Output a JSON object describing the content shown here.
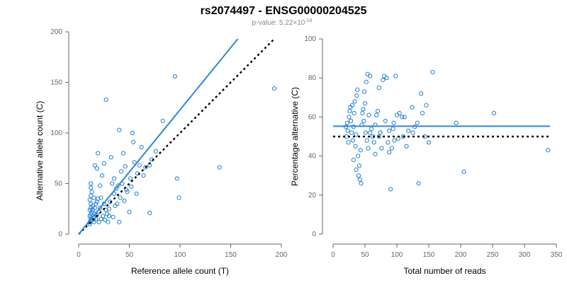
{
  "figure": {
    "title": "rs2074497 - ENSG00000204525",
    "pvalue_prefix": "p-value: 5.22×10",
    "pvalue_exponent": "-18"
  },
  "chart_data": [
    {
      "type": "scatter",
      "xlabel": "Reference allele count (T)",
      "ylabel": "Alternative allele count (C)",
      "xlim": [
        0,
        200
      ],
      "ylim": [
        0,
        200
      ],
      "xticks": [
        0,
        50,
        100,
        150,
        200
      ],
      "yticks": [
        0,
        50,
        100,
        150,
        200
      ],
      "grid": false,
      "colors": {
        "points": "#1f7fd4",
        "fit": "#2b88d8",
        "reference": "#000000"
      },
      "fit_line": {
        "x": [
          0,
          157
        ],
        "y": [
          0,
          193
        ]
      },
      "reference_line": {
        "x": [
          0,
          192
        ],
        "y": [
          0,
          192
        ]
      },
      "points": [
        [
          11,
          10
        ],
        [
          11,
          12
        ],
        [
          12,
          14
        ],
        [
          12,
          16
        ],
        [
          11,
          18
        ],
        [
          12,
          20
        ],
        [
          13,
          22
        ],
        [
          11,
          24
        ],
        [
          12,
          26
        ],
        [
          14,
          28
        ],
        [
          12,
          30
        ],
        [
          11,
          34
        ],
        [
          12,
          38
        ],
        [
          13,
          42
        ],
        [
          12,
          46
        ],
        [
          12,
          50
        ],
        [
          15,
          12
        ],
        [
          15,
          16
        ],
        [
          16,
          20
        ],
        [
          14,
          24
        ],
        [
          17,
          30
        ],
        [
          15,
          36
        ],
        [
          16,
          68
        ],
        [
          18,
          65
        ],
        [
          19,
          80
        ],
        [
          17,
          15
        ],
        [
          18,
          19
        ],
        [
          20,
          22
        ],
        [
          21,
          26
        ],
        [
          19,
          35
        ],
        [
          20,
          12
        ],
        [
          22,
          15
        ],
        [
          24,
          18
        ],
        [
          21,
          48
        ],
        [
          23,
          58
        ],
        [
          25,
          70
        ],
        [
          27,
          133
        ],
        [
          26,
          14
        ],
        [
          28,
          20
        ],
        [
          30,
          25
        ],
        [
          29,
          12
        ],
        [
          31,
          32
        ],
        [
          33,
          50
        ],
        [
          32,
          76
        ],
        [
          35,
          40
        ],
        [
          36,
          28
        ],
        [
          37,
          45
        ],
        [
          34,
          17
        ],
        [
          38,
          30
        ],
        [
          40,
          12
        ],
        [
          41,
          36
        ],
        [
          42,
          62
        ],
        [
          40,
          103
        ],
        [
          43,
          50
        ],
        [
          44,
          80
        ],
        [
          46,
          67
        ],
        [
          45,
          33
        ],
        [
          48,
          42
        ],
        [
          50,
          22
        ],
        [
          52,
          47
        ],
        [
          51,
          55
        ],
        [
          53,
          100
        ],
        [
          55,
          71
        ],
        [
          54,
          91
        ],
        [
          57,
          40
        ],
        [
          60,
          68
        ],
        [
          62,
          86
        ],
        [
          64,
          58
        ],
        [
          70,
          68
        ],
        [
          72,
          74
        ],
        [
          76,
          82
        ],
        [
          70,
          21
        ],
        [
          83,
          112
        ],
        [
          95,
          156
        ],
        [
          97,
          55
        ],
        [
          99,
          36
        ],
        [
          139,
          66
        ],
        [
          193,
          144
        ],
        [
          14,
          14
        ],
        [
          16,
          26
        ],
        [
          18,
          32
        ],
        [
          22,
          36
        ],
        [
          25,
          30
        ],
        [
          27,
          24
        ],
        [
          30,
          18
        ],
        [
          35,
          55
        ],
        [
          39,
          48
        ],
        [
          47,
          44
        ],
        [
          58,
          60
        ],
        [
          66,
          66
        ]
      ]
    },
    {
      "type": "scatter",
      "xlabel": "Total number of reads",
      "ylabel": "Percentage alternative (C)",
      "xlim": [
        0,
        350
      ],
      "ylim": [
        0,
        100
      ],
      "xticks": [
        0,
        50,
        100,
        150,
        200,
        250,
        300,
        350
      ],
      "yticks": [
        0,
        20,
        40,
        60,
        80,
        100
      ],
      "grid": false,
      "colors": {
        "points": "#1f7fd4",
        "fit": "#2b88d8",
        "reference": "#000000"
      },
      "fit_line": {
        "x": [
          0,
          340
        ],
        "y": [
          55.3,
          55.3
        ]
      },
      "reference_line": {
        "x": [
          0,
          340
        ],
        "y": [
          50,
          50
        ]
      },
      "points": [
        [
          20,
          55
        ],
        [
          21,
          50
        ],
        [
          22,
          57
        ],
        [
          23,
          53
        ],
        [
          24,
          47
        ],
        [
          25,
          60
        ],
        [
          26,
          63
        ],
        [
          27,
          65
        ],
        [
          28,
          58
        ],
        [
          29,
          52
        ],
        [
          30,
          66
        ],
        [
          31,
          48
        ],
        [
          32,
          55
        ],
        [
          33,
          62
        ],
        [
          34,
          68
        ],
        [
          35,
          45
        ],
        [
          36,
          51
        ],
        [
          37,
          71
        ],
        [
          38,
          74
        ],
        [
          39,
          40
        ],
        [
          40,
          30
        ],
        [
          41,
          35
        ],
        [
          42,
          28
        ],
        [
          43,
          43
        ],
        [
          44,
          26
        ],
        [
          45,
          56
        ],
        [
          46,
          62
        ],
        [
          47,
          64
        ],
        [
          48,
          58
        ],
        [
          49,
          73
        ],
        [
          50,
          67
        ],
        [
          51,
          52
        ],
        [
          52,
          78
        ],
        [
          53,
          48
        ],
        [
          54,
          82
        ],
        [
          55,
          44
        ],
        [
          56,
          61
        ],
        [
          58,
          81
        ],
        [
          60,
          54
        ],
        [
          62,
          50
        ],
        [
          64,
          47
        ],
        [
          66,
          56
        ],
        [
          68,
          61
        ],
        [
          70,
          63
        ],
        [
          72,
          75
        ],
        [
          74,
          52
        ],
        [
          76,
          44
        ],
        [
          78,
          79
        ],
        [
          80,
          81
        ],
        [
          82,
          58
        ],
        [
          84,
          80
        ],
        [
          86,
          47
        ],
        [
          88,
          53
        ],
        [
          90,
          23
        ],
        [
          92,
          44
        ],
        [
          94,
          54
        ],
        [
          96,
          48
        ],
        [
          98,
          81
        ],
        [
          100,
          61
        ],
        [
          104,
          62
        ],
        [
          108,
          60
        ],
        [
          110,
          50
        ],
        [
          112,
          60
        ],
        [
          118,
          53
        ],
        [
          124,
          65
        ],
        [
          128,
          55
        ],
        [
          132,
          57
        ],
        [
          134,
          26
        ],
        [
          138,
          72
        ],
        [
          140,
          62
        ],
        [
          144,
          50
        ],
        [
          146,
          66
        ],
        [
          150,
          47
        ],
        [
          156,
          83
        ],
        [
          193,
          57
        ],
        [
          205,
          32
        ],
        [
          252,
          62
        ],
        [
          337,
          43
        ],
        [
          32,
          38
        ],
        [
          36,
          33
        ],
        [
          58,
          52
        ],
        [
          66,
          41
        ],
        [
          72,
          50
        ],
        [
          88,
          42
        ],
        [
          95,
          57
        ],
        [
          102,
          49
        ],
        [
          115,
          45
        ],
        [
          125,
          52
        ]
      ]
    }
  ]
}
